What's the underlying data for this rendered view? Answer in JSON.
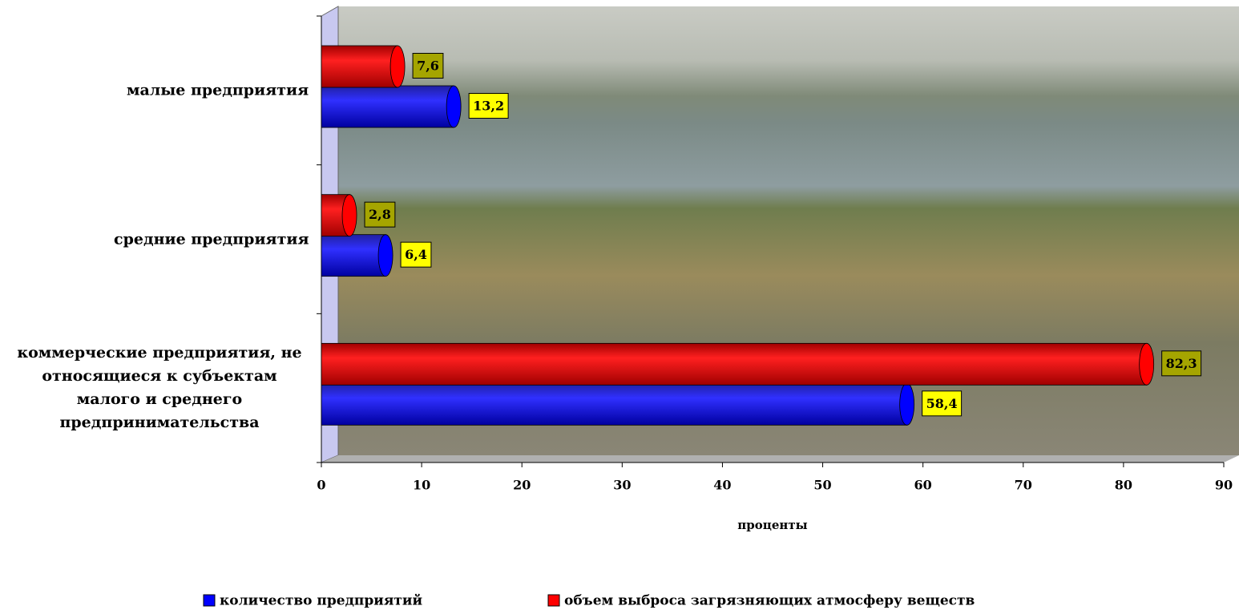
{
  "chart_data": {
    "type": "bar",
    "orientation": "horizontal",
    "categories": [
      "малые предприятия",
      "средние предприятия",
      "коммерческие предприятия, не относящиеся к субъектам малого и среднего предпринимательства"
    ],
    "series": [
      {
        "name": "количество предприятий",
        "color": "#0000ff",
        "values": [
          13.2,
          6.4,
          58.4
        ],
        "value_labels": [
          "13,2",
          "6,4",
          "58,4"
        ]
      },
      {
        "name": "объем выброса загрязняющих атмосферу веществ",
        "color": "#ff0000",
        "values": [
          7.6,
          2.8,
          82.3
        ],
        "value_labels": [
          "7,6",
          "2,8",
          "82,3"
        ]
      }
    ],
    "x_label": "проценты",
    "xlim": [
      0,
      90
    ],
    "xticks": [
      0,
      10,
      20,
      30,
      40,
      50,
      60,
      70,
      80,
      90
    ],
    "grid": false,
    "legend": "bottom"
  }
}
